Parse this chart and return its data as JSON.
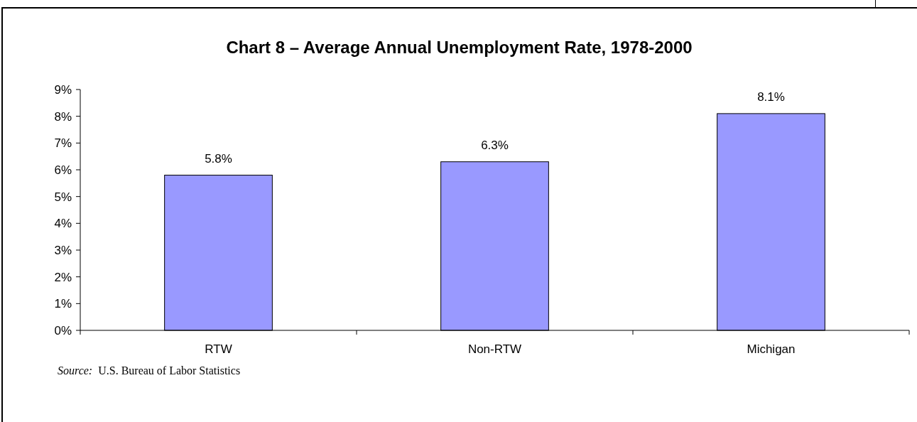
{
  "chart_data": {
    "type": "bar",
    "title": "Chart 8 – Average Annual Unemployment Rate, 1978-2000",
    "categories": [
      "RTW",
      "Non-RTW",
      "Michigan"
    ],
    "values": [
      5.8,
      6.3,
      8.1
    ],
    "value_labels": [
      "5.8%",
      "6.3%",
      "8.1%"
    ],
    "color": "#9999ff",
    "ylim": [
      0,
      9
    ],
    "yticks": [
      {
        "value": 0,
        "label": "0%"
      },
      {
        "value": 1,
        "label": "1%"
      },
      {
        "value": 2,
        "label": "2%"
      },
      {
        "value": 3,
        "label": "3%"
      },
      {
        "value": 4,
        "label": "4%"
      },
      {
        "value": 5,
        "label": "5%"
      },
      {
        "value": 6,
        "label": "6%"
      },
      {
        "value": 7,
        "label": "7%"
      },
      {
        "value": 8,
        "label": "8%"
      },
      {
        "value": 9,
        "label": "9%"
      }
    ],
    "annotations": [
      "Source: U.S. Bureau of Labor Statistics"
    ],
    "grid": false
  }
}
